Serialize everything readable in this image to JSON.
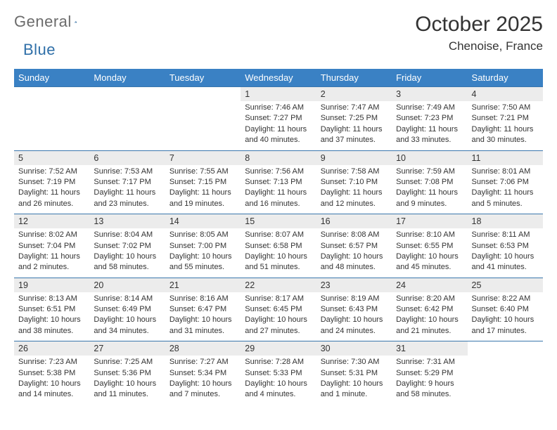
{
  "brand": {
    "word1": "General",
    "word2": "Blue"
  },
  "header": {
    "title": "October 2025",
    "location": "Chenoise, France"
  },
  "columns": [
    "Sunday",
    "Monday",
    "Tuesday",
    "Wednesday",
    "Thursday",
    "Friday",
    "Saturday"
  ],
  "colors": {
    "header_bg": "#3a81c4",
    "header_text": "#ffffff",
    "daynum_bg": "#ececec",
    "rule": "#3a77ad",
    "text": "#333333",
    "logo_gray": "#6b6b6b",
    "logo_blue": "#2f6fa8"
  },
  "weeks": [
    [
      null,
      null,
      null,
      {
        "n": "1",
        "sunrise": "7:46 AM",
        "sunset": "7:27 PM",
        "daylight": "11 hours and 40 minutes."
      },
      {
        "n": "2",
        "sunrise": "7:47 AM",
        "sunset": "7:25 PM",
        "daylight": "11 hours and 37 minutes."
      },
      {
        "n": "3",
        "sunrise": "7:49 AM",
        "sunset": "7:23 PM",
        "daylight": "11 hours and 33 minutes."
      },
      {
        "n": "4",
        "sunrise": "7:50 AM",
        "sunset": "7:21 PM",
        "daylight": "11 hours and 30 minutes."
      }
    ],
    [
      {
        "n": "5",
        "sunrise": "7:52 AM",
        "sunset": "7:19 PM",
        "daylight": "11 hours and 26 minutes."
      },
      {
        "n": "6",
        "sunrise": "7:53 AM",
        "sunset": "7:17 PM",
        "daylight": "11 hours and 23 minutes."
      },
      {
        "n": "7",
        "sunrise": "7:55 AM",
        "sunset": "7:15 PM",
        "daylight": "11 hours and 19 minutes."
      },
      {
        "n": "8",
        "sunrise": "7:56 AM",
        "sunset": "7:13 PM",
        "daylight": "11 hours and 16 minutes."
      },
      {
        "n": "9",
        "sunrise": "7:58 AM",
        "sunset": "7:10 PM",
        "daylight": "11 hours and 12 minutes."
      },
      {
        "n": "10",
        "sunrise": "7:59 AM",
        "sunset": "7:08 PM",
        "daylight": "11 hours and 9 minutes."
      },
      {
        "n": "11",
        "sunrise": "8:01 AM",
        "sunset": "7:06 PM",
        "daylight": "11 hours and 5 minutes."
      }
    ],
    [
      {
        "n": "12",
        "sunrise": "8:02 AM",
        "sunset": "7:04 PM",
        "daylight": "11 hours and 2 minutes."
      },
      {
        "n": "13",
        "sunrise": "8:04 AM",
        "sunset": "7:02 PM",
        "daylight": "10 hours and 58 minutes."
      },
      {
        "n": "14",
        "sunrise": "8:05 AM",
        "sunset": "7:00 PM",
        "daylight": "10 hours and 55 minutes."
      },
      {
        "n": "15",
        "sunrise": "8:07 AM",
        "sunset": "6:58 PM",
        "daylight": "10 hours and 51 minutes."
      },
      {
        "n": "16",
        "sunrise": "8:08 AM",
        "sunset": "6:57 PM",
        "daylight": "10 hours and 48 minutes."
      },
      {
        "n": "17",
        "sunrise": "8:10 AM",
        "sunset": "6:55 PM",
        "daylight": "10 hours and 45 minutes."
      },
      {
        "n": "18",
        "sunrise": "8:11 AM",
        "sunset": "6:53 PM",
        "daylight": "10 hours and 41 minutes."
      }
    ],
    [
      {
        "n": "19",
        "sunrise": "8:13 AM",
        "sunset": "6:51 PM",
        "daylight": "10 hours and 38 minutes."
      },
      {
        "n": "20",
        "sunrise": "8:14 AM",
        "sunset": "6:49 PM",
        "daylight": "10 hours and 34 minutes."
      },
      {
        "n": "21",
        "sunrise": "8:16 AM",
        "sunset": "6:47 PM",
        "daylight": "10 hours and 31 minutes."
      },
      {
        "n": "22",
        "sunrise": "8:17 AM",
        "sunset": "6:45 PM",
        "daylight": "10 hours and 27 minutes."
      },
      {
        "n": "23",
        "sunrise": "8:19 AM",
        "sunset": "6:43 PM",
        "daylight": "10 hours and 24 minutes."
      },
      {
        "n": "24",
        "sunrise": "8:20 AM",
        "sunset": "6:42 PM",
        "daylight": "10 hours and 21 minutes."
      },
      {
        "n": "25",
        "sunrise": "8:22 AM",
        "sunset": "6:40 PM",
        "daylight": "10 hours and 17 minutes."
      }
    ],
    [
      {
        "n": "26",
        "sunrise": "7:23 AM",
        "sunset": "5:38 PM",
        "daylight": "10 hours and 14 minutes."
      },
      {
        "n": "27",
        "sunrise": "7:25 AM",
        "sunset": "5:36 PM",
        "daylight": "10 hours and 11 minutes."
      },
      {
        "n": "28",
        "sunrise": "7:27 AM",
        "sunset": "5:34 PM",
        "daylight": "10 hours and 7 minutes."
      },
      {
        "n": "29",
        "sunrise": "7:28 AM",
        "sunset": "5:33 PM",
        "daylight": "10 hours and 4 minutes."
      },
      {
        "n": "30",
        "sunrise": "7:30 AM",
        "sunset": "5:31 PM",
        "daylight": "10 hours and 1 minute."
      },
      {
        "n": "31",
        "sunrise": "7:31 AM",
        "sunset": "5:29 PM",
        "daylight": "9 hours and 58 minutes."
      },
      null
    ]
  ],
  "labels": {
    "sunrise": "Sunrise: ",
    "sunset": "Sunset: ",
    "daylight": "Daylight: "
  }
}
